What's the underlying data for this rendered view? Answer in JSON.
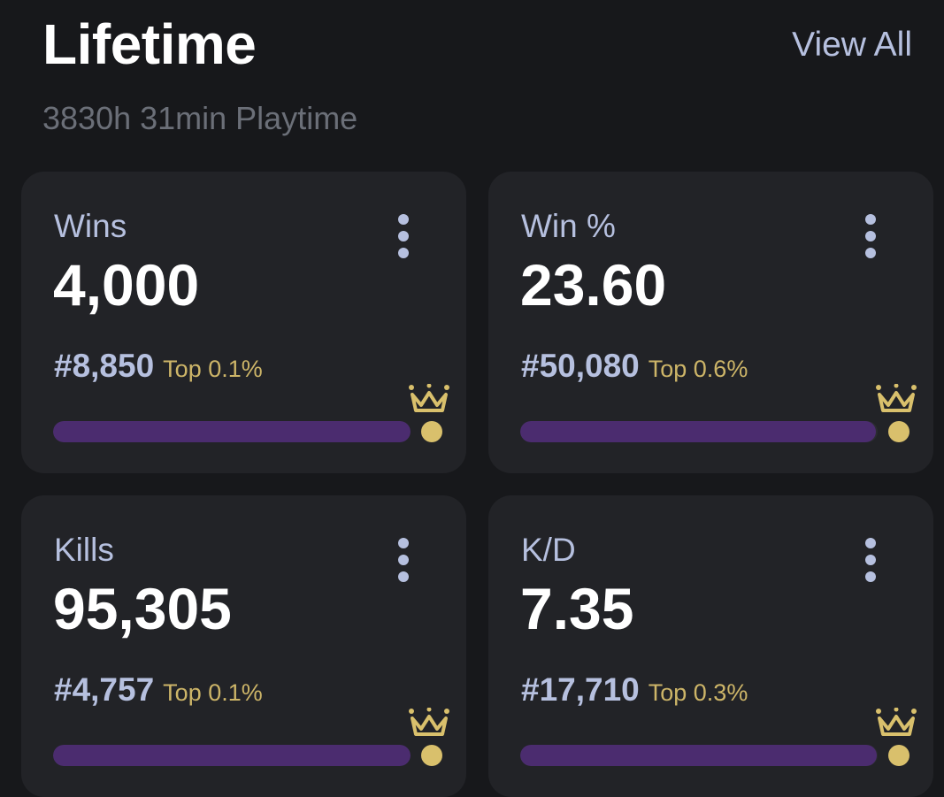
{
  "header": {
    "title": "Lifetime",
    "view_all": "View All",
    "playtime": "3830h 31min Playtime"
  },
  "colors": {
    "background": "#17181b",
    "card": "#222327",
    "label": "#b6c0df",
    "value": "#ffffff",
    "gold": "#d9c06c",
    "progress": "#4b2c6f"
  },
  "icons": {
    "menu": "more-vertical-icon",
    "crown": "crown-icon"
  },
  "stats": [
    {
      "label": "Wins",
      "value": "4,000",
      "rank": "#8,850",
      "top": "Top 0.1%",
      "progress": 0.999
    },
    {
      "label": "Win %",
      "value": "23.60",
      "rank": "#50,080",
      "top": "Top 0.6%",
      "progress": 0.994
    },
    {
      "label": "Kills",
      "value": "95,305",
      "rank": "#4,757",
      "top": "Top 0.1%",
      "progress": 0.999
    },
    {
      "label": "K/D",
      "value": "7.35",
      "rank": "#17,710",
      "top": "Top 0.3%",
      "progress": 0.997
    }
  ]
}
